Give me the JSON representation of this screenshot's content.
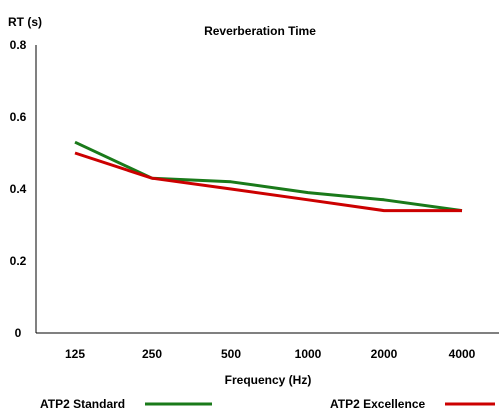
{
  "chart_data": {
    "type": "line",
    "title": "Reverberation Time",
    "ylabel": "RT (s)",
    "xlabel": "Frequency (Hz)",
    "categories": [
      "125",
      "250",
      "500",
      "1000",
      "2000",
      "4000"
    ],
    "ylim": [
      0,
      0.8
    ],
    "yticks": [
      "0",
      "0.2",
      "0.4",
      "0.6",
      "0.8"
    ],
    "grid": false,
    "legend_position": "bottom",
    "series": [
      {
        "name": "ATP2 Standard",
        "color": "#1a7a1a",
        "values": [
          0.53,
          0.43,
          0.42,
          0.39,
          0.37,
          0.34
        ]
      },
      {
        "name": "ATP2 Excellence",
        "color": "#cc0000",
        "values": [
          0.5,
          0.43,
          0.4,
          0.37,
          0.34,
          0.34
        ]
      }
    ]
  }
}
